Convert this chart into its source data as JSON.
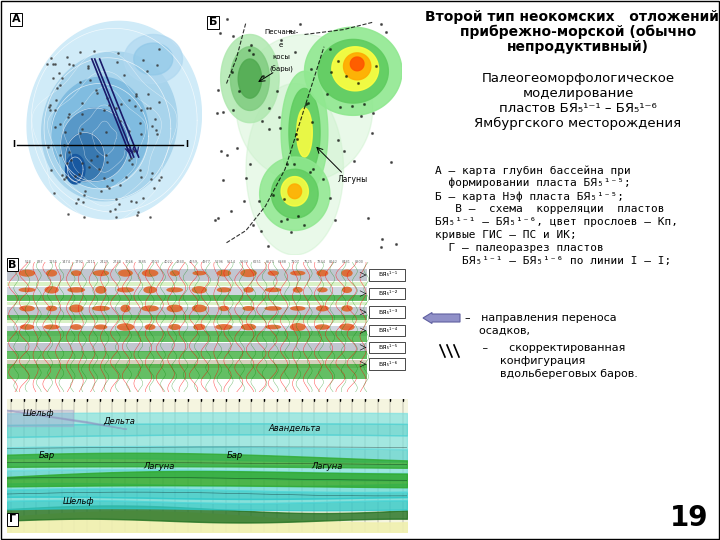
{
  "bg_color": "#ffffff",
  "panel_A_bg": "#7bbfdf",
  "panel_B_bg": "#ffffff",
  "panel_V_bg": "#f5f0d8",
  "panel_G_bg": "#e0f8f8",
  "title_line1": "Второй тип неокомских   отложений –",
  "title_line2": "прибрежно-морской (обычно",
  "title_line3": "непродуктивный)",
  "sub1": "Палеогеоморфологическое",
  "sub2": "моделирование",
  "sub3": "пластов БЯ₅¹⁻¹ – БЯ₅¹⁻⁶",
  "sub4": "Ямбургского месторождения",
  "desc1": "А – карта глубин бассейна при",
  "desc2": "  формировании пласта БЯ₅¹⁻⁵;",
  "desc3": "Б – карта Нэф пласта БЯ₅¹⁻⁵;",
  "desc4": "   В –  схема  корреляции  пластов",
  "desc5": "БЯ₅¹⁻¹ – БЯ₅¹⁻⁶, цвет прослоев – Кп,",
  "desc6": "кривые ГИС – ПС и ИК;",
  "desc7": "  Г – палеоразрез пластов",
  "desc8": "    БЯ₅¹⁻¹ – БЯ₅¹⁻⁶ по линии I – I;",
  "leg1": "–   направления переноса",
  "leg1b": "    осадков,",
  "leg2": "     –      скорректированная",
  "leg2b": "          конфигурация",
  "leg2c": "          вдольбереговых баров.",
  "page": "19",
  "layer_labels": [
    "БЯ₅¹⁻¹",
    "БЯ₅¹⁻²",
    "БЯ₅¹⁻³",
    "БЯ₅¹⁻⁴",
    "БЯ₅¹⁻⁵",
    "БЯ₅¹⁻⁶"
  ]
}
